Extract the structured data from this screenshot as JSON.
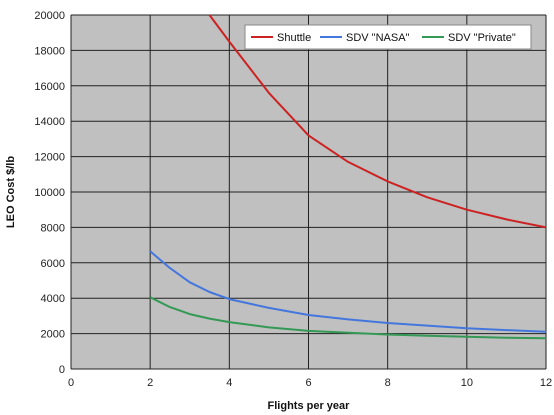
{
  "chart_data": {
    "type": "line",
    "title": "",
    "xlabel": "Flights per year",
    "ylabel": "LEO Cost $/lb",
    "xlim": [
      0,
      12
    ],
    "ylim": [
      0,
      20000
    ],
    "x_ticks": [
      0,
      2,
      4,
      6,
      8,
      10,
      12
    ],
    "x_tick_labels": [
      "0",
      "2",
      "4",
      "6",
      "8",
      "10",
      "12"
    ],
    "y_ticks": [
      0,
      2000,
      4000,
      6000,
      8000,
      10000,
      12000,
      14000,
      16000,
      18000,
      20000
    ],
    "y_tick_labels": [
      "0",
      "2000",
      "4000",
      "6000",
      "8000",
      "10000",
      "12000",
      "14000",
      "16000",
      "18000",
      "20000"
    ],
    "grid": true,
    "legend_position": "top-right",
    "background": "#c0c0c0",
    "series": [
      {
        "name": "Shuttle",
        "color": "#cc2222",
        "x": [
          3.5,
          4,
          5,
          6,
          7,
          8,
          9,
          10,
          11,
          12
        ],
        "y": [
          20000,
          18500,
          15600,
          13200,
          11700,
          10600,
          9700,
          9000,
          8450,
          8000
        ]
      },
      {
        "name": "SDV \"NASA\"",
        "color": "#4477dd",
        "x": [
          2,
          2.5,
          3,
          3.5,
          4,
          5,
          6,
          7,
          8,
          9,
          10,
          11,
          12
        ],
        "y": [
          6650,
          5700,
          4900,
          4350,
          3950,
          3450,
          3050,
          2800,
          2600,
          2450,
          2300,
          2200,
          2100
        ]
      },
      {
        "name": "SDV \"Private\"",
        "color": "#339955",
        "x": [
          2,
          2.5,
          3,
          3.5,
          4,
          5,
          6,
          7,
          8,
          9,
          10,
          11,
          12
        ],
        "y": [
          4050,
          3500,
          3100,
          2850,
          2650,
          2350,
          2150,
          2050,
          1950,
          1880,
          1820,
          1770,
          1740
        ]
      }
    ]
  }
}
